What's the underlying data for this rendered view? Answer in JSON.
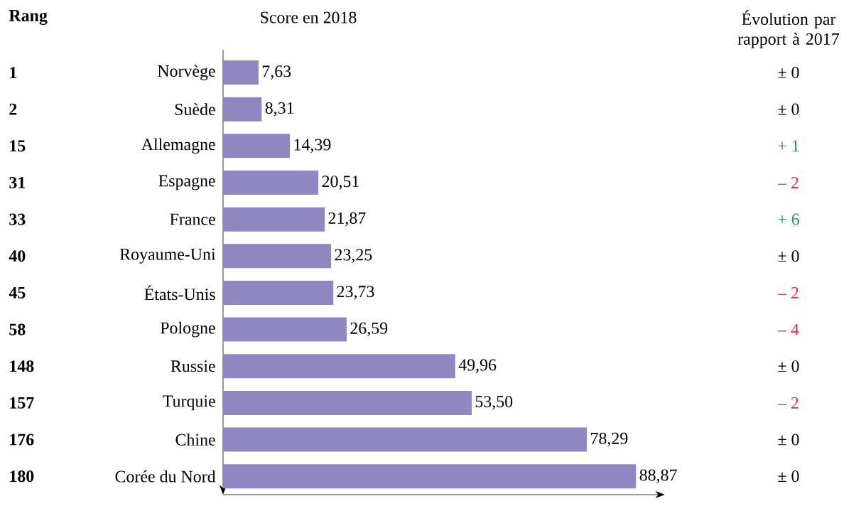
{
  "chart_data": {
    "type": "bar",
    "orientation": "horizontal",
    "xlabel": "Score en 2018",
    "categories": [
      "Norvège",
      "Suède",
      "Allemagne",
      "Espagne",
      "France",
      "Royaume-Uni",
      "États-Unis",
      "Pologne",
      "Russie",
      "Turquie",
      "Chine",
      "Corée du Nord"
    ],
    "values": [
      7.63,
      8.31,
      14.39,
      20.51,
      21.87,
      23.25,
      23.73,
      26.59,
      49.96,
      53.5,
      78.29,
      88.87
    ],
    "value_labels": [
      "7,63",
      "8,31",
      "14,39",
      "20,51",
      "21,87",
      "23,25",
      "23,73",
      "26,59",
      "49,96",
      "53,50",
      "78,29",
      "88,87"
    ],
    "color": "#8f88c0",
    "annotations": [
      "Rang",
      "Évolution par rapport à 2017",
      "1",
      "2",
      "15",
      "31",
      "33",
      "40",
      "45",
      "58",
      "148",
      "157",
      "176",
      "180",
      "± 0",
      "± 0",
      "+ 1",
      "– 2",
      "+ 6",
      "± 0",
      "– 2",
      "– 4",
      "± 0",
      "– 2",
      "± 0",
      "± 0"
    ]
  }
}
